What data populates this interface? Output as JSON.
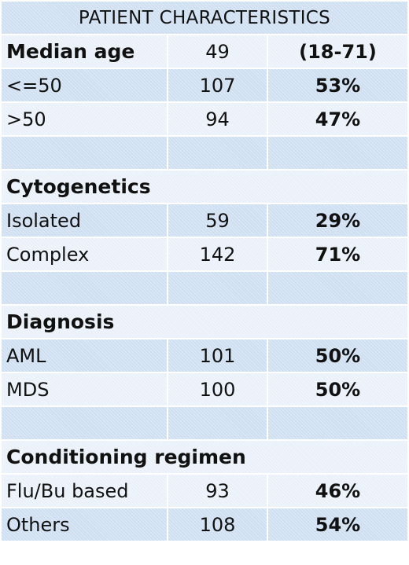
{
  "title": "PATIENT CHARACTERISTICS",
  "median_age": {
    "label": "Median age",
    "value": "49",
    "range": "(18-71)"
  },
  "age_groups": [
    {
      "label": "<=50",
      "count": "107",
      "pct": "53%"
    },
    {
      "label": ">50",
      "count": "94",
      "pct": "47%"
    }
  ],
  "cytogenetics": {
    "heading": "Cytogenetics",
    "rows": [
      {
        "label": "Isolated",
        "count": "59",
        "pct": "29%"
      },
      {
        "label": "Complex",
        "count": "142",
        "pct": "71%"
      }
    ]
  },
  "diagnosis": {
    "heading": "Diagnosis",
    "rows": [
      {
        "label": "AML",
        "count": "101",
        "pct": "50%"
      },
      {
        "label": "MDS",
        "count": "100",
        "pct": "50%"
      }
    ]
  },
  "conditioning": {
    "heading": "Conditioning regimen",
    "rows": [
      {
        "label": "Flu/Bu based",
        "count": "93",
        "pct": "46%"
      },
      {
        "label": "Others",
        "count": "108",
        "pct": "54%"
      }
    ]
  },
  "colors": {
    "row_blue": "#cfdff2",
    "row_light": "#e9f0f9"
  }
}
